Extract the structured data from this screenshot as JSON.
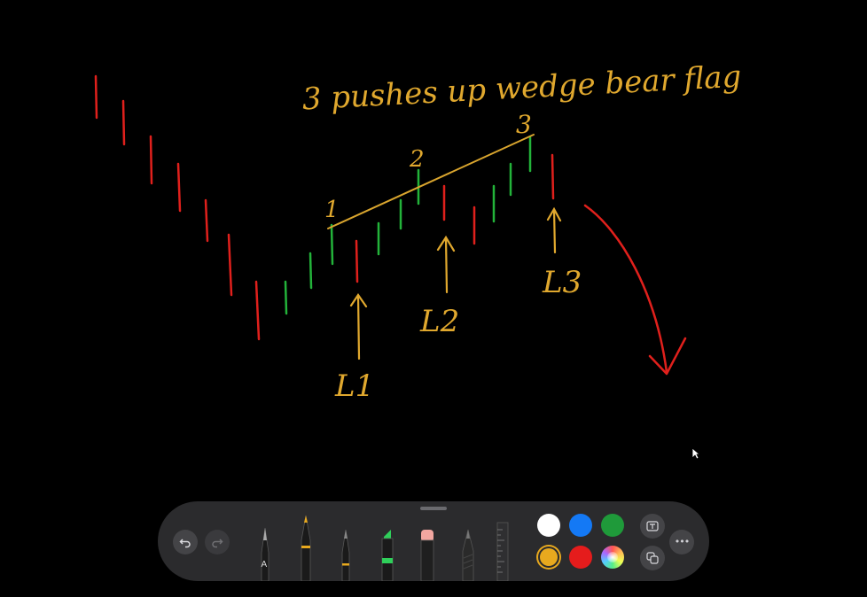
{
  "annotations": {
    "title": "3 pushes up   wedge bear flag",
    "push_labels": [
      "1",
      "2",
      "3"
    ],
    "pullback_labels": [
      "L1",
      "L2",
      "L3"
    ]
  },
  "colors": {
    "background": "#000000",
    "bear_bar": "#e0201c",
    "bull_bar": "#23b33a",
    "ink_yellow": "#e0a82e",
    "toolbar": "#2b2b2d"
  },
  "toolbar": {
    "undo_icon": "undo-icon",
    "redo_icon": "redo-icon",
    "tools": [
      "pen-tool",
      "monoline-pen-tool",
      "fountain-pen-tool",
      "marker-tool",
      "eraser-tool",
      "pencil-tool",
      "ruler-tool"
    ],
    "pen_letter": "A",
    "swatches": [
      "#ffffff",
      "#1479f5",
      "#1f9a3a",
      "#e8a91e",
      "#e51c1c",
      "color-wheel"
    ],
    "selected_swatch": "#e8a91e",
    "right_buttons": [
      "text-box-icon",
      "shapes-icon"
    ],
    "more_label": "•••"
  }
}
